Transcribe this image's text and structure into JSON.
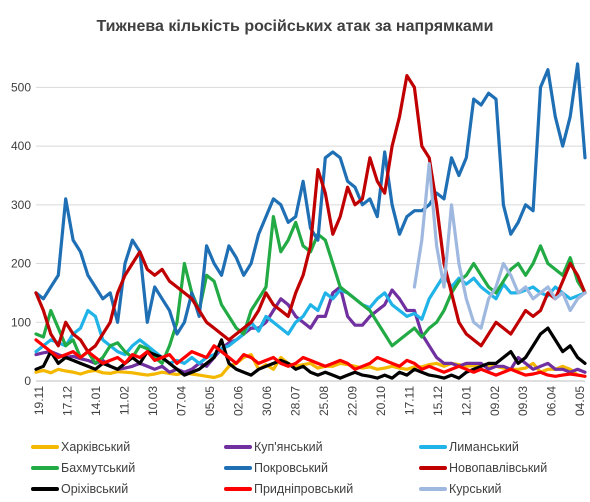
{
  "chart_data": {
    "type": "line",
    "title": "Тижнева кількість російських атак за напрямками",
    "xlabel": "",
    "ylabel": "",
    "ylim": [
      0,
      550
    ],
    "yticks": [
      0,
      100,
      200,
      300,
      400,
      500
    ],
    "grid": "horizontal",
    "legend_position": "bottom",
    "x_tick_labels": [
      "19.11",
      "17.12",
      "14.01",
      "11.02",
      "10.03",
      "07.04",
      "05.05",
      "02.06",
      "30.06",
      "28.07",
      "25.08",
      "22.09",
      "20.10",
      "17.11",
      "15.12",
      "12.01",
      "09.02",
      "09.03",
      "06.04",
      "04.05"
    ],
    "series": [
      {
        "name": "Харківський",
        "color": "#F5B800",
        "values": [
          15,
          18,
          14,
          20,
          17,
          15,
          12,
          16,
          18,
          14,
          13,
          16,
          15,
          14,
          12,
          10,
          12,
          15,
          13,
          11,
          14,
          12,
          10,
          8,
          6,
          10,
          25,
          30,
          40,
          45,
          20,
          28,
          20,
          40,
          30,
          25,
          28,
          30,
          22,
          25,
          25,
          30,
          28,
          25,
          22,
          24,
          20,
          22,
          25,
          22,
          20,
          24,
          24,
          28,
          30,
          25,
          30,
          28,
          25,
          26,
          28,
          24,
          25,
          22,
          20,
          20,
          22,
          30,
          15,
          20,
          20,
          25,
          20,
          10,
          8
        ]
      },
      {
        "name": "Куп'янський",
        "color": "#7030A0",
        "values": [
          45,
          48,
          50,
          45,
          40,
          42,
          38,
          35,
          30,
          35,
          25,
          20,
          22,
          25,
          30,
          25,
          20,
          25,
          15,
          20,
          15,
          20,
          30,
          25,
          40,
          55,
          65,
          70,
          80,
          90,
          90,
          100,
          120,
          140,
          130,
          110,
          100,
          90,
          110,
          110,
          150,
          160,
          110,
          95,
          95,
          110,
          120,
          130,
          155,
          140,
          120,
          120,
          80,
          60,
          40,
          30,
          30,
          25,
          30,
          30,
          30,
          20,
          25,
          25,
          20,
          40,
          30,
          20,
          25,
          30,
          20,
          20,
          15,
          20,
          15
        ]
      },
      {
        "name": "Лиманський",
        "color": "#1FB3E8",
        "values": [
          50,
          60,
          70,
          65,
          60,
          80,
          90,
          120,
          110,
          70,
          60,
          50,
          45,
          60,
          70,
          60,
          50,
          40,
          30,
          35,
          30,
          40,
          30,
          40,
          45,
          55,
          60,
          70,
          80,
          100,
          85,
          110,
          100,
          90,
          80,
          100,
          110,
          130,
          120,
          150,
          140,
          155,
          150,
          140,
          130,
          125,
          140,
          150,
          130,
          120,
          110,
          115,
          105,
          140,
          160,
          180,
          160,
          175,
          165,
          175,
          160,
          150,
          140,
          165,
          150,
          150,
          155,
          160,
          150,
          145,
          160,
          150,
          140,
          145,
          150
        ]
      },
      {
        "name": "Бахмутський",
        "color": "#22AA44",
        "values": [
          80,
          75,
          120,
          90,
          60,
          70,
          40,
          50,
          30,
          40,
          60,
          65,
          50,
          40,
          60,
          55,
          40,
          30,
          60,
          100,
          200,
          150,
          120,
          180,
          170,
          130,
          110,
          90,
          80,
          120,
          140,
          160,
          280,
          220,
          240,
          270,
          230,
          220,
          250,
          240,
          200,
          160,
          150,
          140,
          130,
          120,
          100,
          80,
          60,
          70,
          80,
          90,
          75,
          90,
          100,
          120,
          150,
          170,
          180,
          200,
          180,
          160,
          150,
          170,
          190,
          200,
          180,
          200,
          230,
          200,
          190,
          180,
          210,
          170,
          150
        ]
      },
      {
        "name": "Покровський",
        "color": "#1F6FB5",
        "values": [
          150,
          140,
          160,
          180,
          310,
          240,
          220,
          180,
          160,
          140,
          150,
          100,
          200,
          240,
          220,
          100,
          160,
          140,
          120,
          80,
          100,
          150,
          110,
          230,
          200,
          180,
          230,
          210,
          180,
          200,
          250,
          280,
          310,
          300,
          270,
          280,
          340,
          260,
          240,
          380,
          390,
          380,
          340,
          330,
          300,
          310,
          280,
          390,
          300,
          250,
          280,
          290,
          290,
          300,
          320,
          310,
          380,
          350,
          380,
          480,
          470,
          490,
          480,
          300,
          250,
          270,
          300,
          290,
          500,
          530,
          450,
          400,
          450,
          540,
          380
        ]
      },
      {
        "name": "Новопавлівський",
        "color": "#C00000",
        "values": [
          150,
          120,
          80,
          60,
          100,
          80,
          70,
          50,
          60,
          80,
          100,
          150,
          180,
          200,
          220,
          190,
          180,
          190,
          170,
          160,
          150,
          140,
          120,
          100,
          90,
          80,
          70,
          80,
          90,
          100,
          120,
          150,
          130,
          120,
          110,
          150,
          180,
          230,
          360,
          320,
          250,
          280,
          330,
          300,
          310,
          380,
          340,
          320,
          400,
          450,
          520,
          500,
          400,
          380,
          300,
          200,
          150,
          100,
          80,
          70,
          60,
          80,
          100,
          90,
          80,
          100,
          120,
          110,
          120,
          150,
          140,
          170,
          200,
          180,
          150
        ]
      },
      {
        "name": "Оріхівський",
        "color": "#000000",
        "values": [
          20,
          25,
          50,
          30,
          40,
          35,
          30,
          25,
          20,
          30,
          25,
          20,
          30,
          40,
          30,
          50,
          45,
          40,
          30,
          20,
          10,
          15,
          20,
          30,
          40,
          70,
          30,
          20,
          15,
          10,
          20,
          25,
          30,
          35,
          30,
          20,
          25,
          15,
          10,
          15,
          10,
          5,
          10,
          15,
          10,
          8,
          5,
          10,
          5,
          15,
          10,
          20,
          15,
          10,
          8,
          5,
          10,
          5,
          15,
          20,
          25,
          30,
          30,
          40,
          50,
          30,
          40,
          60,
          80,
          90,
          70,
          50,
          60,
          40,
          30
        ]
      },
      {
        "name": "Придніпровський",
        "color": "#FF0000",
        "values": [
          70,
          60,
          50,
          40,
          45,
          50,
          40,
          50,
          40,
          30,
          35,
          40,
          30,
          45,
          40,
          50,
          35,
          40,
          45,
          30,
          40,
          50,
          45,
          40,
          60,
          50,
          40,
          30,
          45,
          40,
          30,
          35,
          40,
          30,
          25,
          30,
          40,
          35,
          30,
          25,
          30,
          35,
          30,
          20,
          25,
          30,
          40,
          35,
          30,
          25,
          35,
          30,
          20,
          25,
          20,
          15,
          20,
          25,
          20,
          15,
          20,
          15,
          10,
          15,
          20,
          15,
          10,
          12,
          15,
          10,
          8,
          10,
          12,
          10,
          8
        ]
      },
      {
        "name": "Курський",
        "color": "#9FB8DF",
        "values": [
          null,
          null,
          null,
          null,
          null,
          null,
          null,
          null,
          null,
          null,
          null,
          null,
          null,
          null,
          null,
          null,
          null,
          null,
          null,
          null,
          null,
          null,
          null,
          null,
          null,
          null,
          null,
          null,
          null,
          null,
          null,
          null,
          null,
          null,
          null,
          null,
          null,
          null,
          null,
          null,
          null,
          null,
          null,
          null,
          null,
          null,
          null,
          null,
          null,
          null,
          null,
          160,
          240,
          370,
          230,
          160,
          300,
          200,
          140,
          100,
          90,
          140,
          160,
          200,
          180,
          150,
          160,
          140,
          150,
          160,
          140,
          150,
          120,
          140,
          150
        ]
      }
    ]
  }
}
